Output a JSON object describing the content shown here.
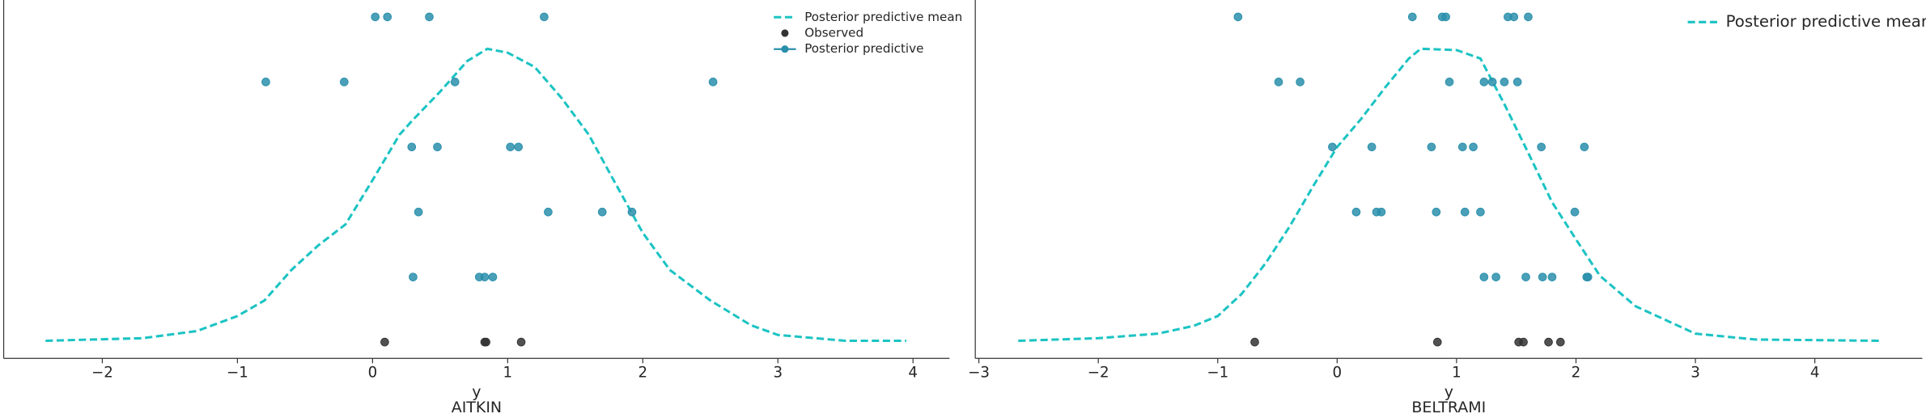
{
  "chart_data": [
    {
      "type": "line",
      "title": "AITKIN",
      "xlabel": "y",
      "xlim": [
        -2.73,
        4.27
      ],
      "xticks": [
        {
          "value": -2,
          "label": "−2"
        },
        {
          "value": -1,
          "label": "−1"
        },
        0,
        1,
        2,
        3,
        4
      ],
      "ylim": [
        -0.025,
        0.526
      ],
      "series": [
        {
          "name": "Posterior predictive mean",
          "color": "#1cc3c3",
          "dashed": true,
          "x": [
            -2.42,
            -1.7,
            -1.3,
            -1,
            -0.8,
            -0.6,
            -0.4,
            -0.2,
            0,
            0.2,
            0.3,
            0.5,
            0.7,
            0.85,
            1.0,
            1.2,
            1.4,
            1.6,
            1.8,
            2.0,
            2.2,
            2.5,
            2.8,
            3.0,
            3.5,
            3.95
          ],
          "values": [
            0.002,
            0.006,
            0.017,
            0.04,
            0.064,
            0.111,
            0.149,
            0.181,
            0.249,
            0.319,
            0.342,
            0.385,
            0.432,
            0.451,
            0.445,
            0.423,
            0.375,
            0.319,
            0.243,
            0.168,
            0.111,
            0.064,
            0.026,
            0.011,
            0.002,
            0.002
          ]
        },
        {
          "name": "Observed",
          "color": "#333333",
          "marker": true,
          "x": [
            0.09,
            0.83,
            0.84,
            1.1
          ],
          "values": [
            0,
            0,
            0,
            0
          ]
        },
        {
          "name": "Posterior predictive",
          "color": "#2a8fab",
          "marker": true,
          "x": [
            0.02,
            0.11,
            0.42,
            1.27,
            -0.79,
            -0.21,
            0.61,
            2.52,
            0.29,
            0.48,
            1.02,
            1.08,
            0.34,
            1.3,
            1.7,
            1.92,
            0.3,
            0.79,
            0.83,
            0.89
          ],
          "values": [
            0.5,
            0.5,
            0.5,
            0.5,
            0.4,
            0.4,
            0.4,
            0.4,
            0.3,
            0.3,
            0.3,
            0.3,
            0.2,
            0.2,
            0.2,
            0.2,
            0.1,
            0.1,
            0.1,
            0.1
          ]
        }
      ]
    },
    {
      "type": "line",
      "title": "BELTRAMI",
      "xlabel": "y",
      "xlim": [
        -3.03,
        4.9
      ],
      "xticks": [
        {
          "value": -3,
          "label": "−3"
        },
        {
          "value": -2,
          "label": "−2"
        },
        {
          "value": -1,
          "label": "−1"
        },
        0,
        1,
        2,
        3,
        4
      ],
      "ylim": [
        -0.025,
        0.526
      ],
      "series": [
        {
          "name": "Posterior predictive mean",
          "color": "#1cc3c3",
          "dashed": true,
          "x": [
            -2.67,
            -2,
            -1.5,
            -1.2,
            -1,
            -0.8,
            -0.6,
            -0.4,
            -0.2,
            0,
            0.2,
            0.4,
            0.6,
            0.7,
            1.0,
            1.2,
            1.4,
            1.6,
            1.8,
            2.0,
            2.2,
            2.5,
            3.0,
            3.5,
            4.54
          ],
          "values": [
            0.002,
            0.006,
            0.013,
            0.025,
            0.04,
            0.074,
            0.121,
            0.177,
            0.24,
            0.3,
            0.343,
            0.391,
            0.436,
            0.451,
            0.449,
            0.436,
            0.366,
            0.291,
            0.215,
            0.158,
            0.102,
            0.055,
            0.013,
            0.004,
            0.002
          ]
        },
        {
          "color": "#333333",
          "marker": true,
          "x": [
            -0.69,
            0.84,
            1.52,
            1.56,
            1.77,
            1.87
          ],
          "values": [
            0,
            0,
            0,
            0,
            0,
            0
          ]
        },
        {
          "color": "#2a8fab",
          "marker": true,
          "x": [
            -0.83,
            0.63,
            0.88,
            0.91,
            1.43,
            1.48,
            1.6,
            -0.49,
            -0.31,
            0.94,
            1.23,
            1.3,
            1.4,
            1.51,
            -0.04,
            0.29,
            0.79,
            1.05,
            1.14,
            1.71,
            2.07,
            0.16,
            0.33,
            0.37,
            0.83,
            1.07,
            1.2,
            1.99,
            1.23,
            1.33,
            1.58,
            1.72,
            1.8,
            2.09,
            2.1
          ],
          "values": [
            0.5,
            0.5,
            0.5,
            0.5,
            0.5,
            0.5,
            0.5,
            0.4,
            0.4,
            0.4,
            0.4,
            0.4,
            0.4,
            0.4,
            0.3,
            0.3,
            0.3,
            0.3,
            0.3,
            0.3,
            0.3,
            0.2,
            0.2,
            0.2,
            0.2,
            0.2,
            0.2,
            0.2,
            0.1,
            0.1,
            0.1,
            0.1,
            0.1,
            0.1,
            0.1
          ]
        }
      ]
    }
  ]
}
